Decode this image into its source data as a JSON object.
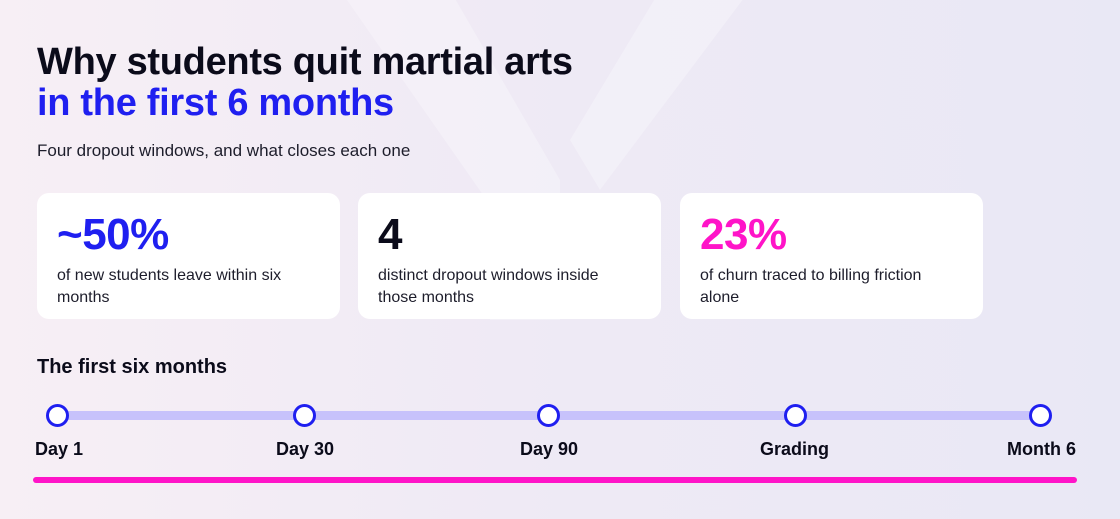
{
  "header": {
    "title_line1": "Why students quit martial arts",
    "title_line2": "in the first 6 months",
    "subtitle": "Four dropout windows, and what closes each one"
  },
  "stats": [
    {
      "value": "~50%",
      "label": "of new students leave within six months",
      "color": "#1f1ff0"
    },
    {
      "value": "4",
      "label": "distinct dropout windows inside those months",
      "color": "#0b0b1a"
    },
    {
      "value": "23%",
      "label": "of churn traced to billing friction alone",
      "color": "#ff14c8"
    }
  ],
  "timeline": {
    "heading": "The first six months",
    "milestones": [
      "Day 1",
      "Day 30",
      "Day 90",
      "Grading",
      "Month 6"
    ]
  },
  "colors": {
    "accent_blue": "#1f1ff0",
    "accent_pink": "#ff14c8",
    "track": "#c7c2fb"
  }
}
